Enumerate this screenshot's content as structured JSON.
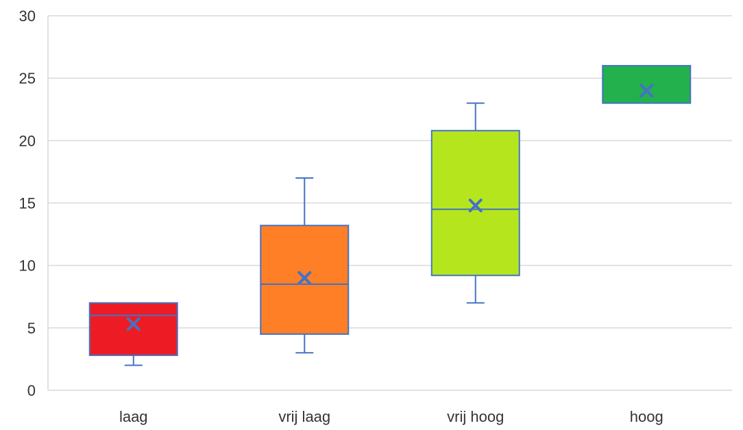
{
  "chart_data": {
    "type": "boxplot",
    "title": "",
    "xlabel": "",
    "ylabel": "",
    "ylim": [
      0,
      30
    ],
    "yticks": [
      0,
      5,
      10,
      15,
      20,
      25,
      30
    ],
    "grid": true,
    "legend": "none",
    "categories": [
      "laag",
      "vrij laag",
      "vrij hoog",
      "hoog"
    ],
    "boxes": [
      {
        "category": "laag",
        "min": 2,
        "q1": 2.8,
        "median": 6,
        "q3": 7,
        "max": 7,
        "mean": 5.3,
        "color": "#ed1c24"
      },
      {
        "category": "vrij laag",
        "min": 3,
        "q1": 4.5,
        "median": 8.5,
        "q3": 13.2,
        "max": 17,
        "mean": 9,
        "color": "#ff7f27"
      },
      {
        "category": "vrij hoog",
        "min": 7,
        "q1": 9.2,
        "median": 14.5,
        "q3": 20.8,
        "max": 23,
        "mean": 14.8,
        "color": "#b5e61d"
      },
      {
        "category": "hoog",
        "min": 23,
        "q1": 23,
        "median": 26,
        "q3": 26,
        "max": 26,
        "mean": 24,
        "color": "#22b14c"
      }
    ],
    "stroke_color": "#4472c4",
    "mean_marker_color": "#4472c4"
  }
}
